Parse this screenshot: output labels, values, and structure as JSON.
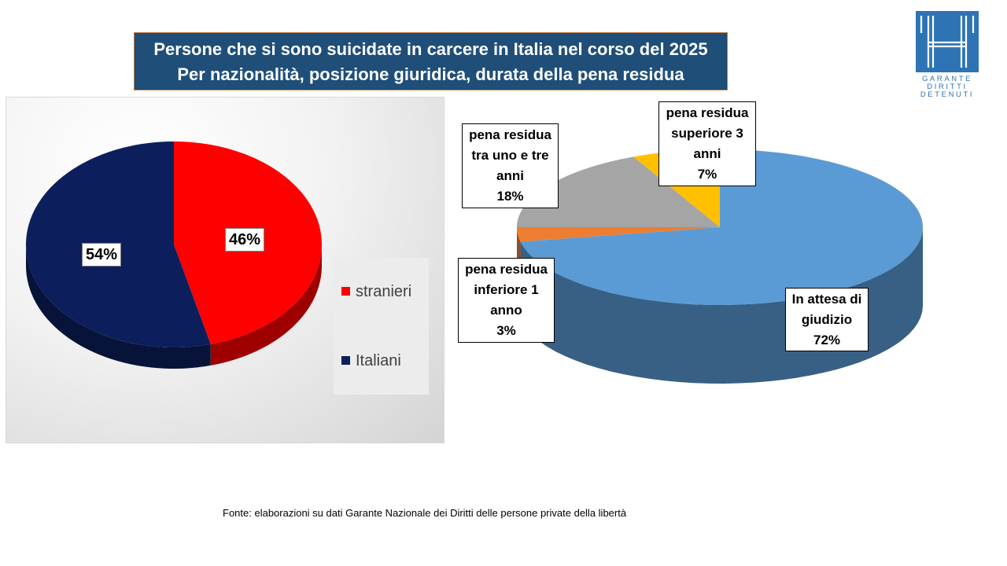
{
  "title": {
    "line1": "Persone che si sono suicidate in carcere in Italia nel corso del 2025",
    "line2": "Per nazionalità, posizione giuridica, durata della pena residua"
  },
  "logo": {
    "line1": "GARANTE",
    "line2": "DIRITTI",
    "line3": "DETENUTI"
  },
  "chart_data": [
    {
      "type": "pie",
      "style": "3d",
      "categories": [
        "stranieri",
        "Italiani"
      ],
      "values": [
        46,
        54
      ],
      "labels": [
        "46%",
        "54%"
      ],
      "colors": [
        "#ff0000",
        "#0c1f5c"
      ],
      "legend_position": "right"
    },
    {
      "type": "pie",
      "style": "3d",
      "categories": [
        "In attesa di giudizio",
        "pena residua inferiore 1 anno",
        "pena residua tra uno e tre anni",
        "pena residua superiore 3 anni"
      ],
      "values": [
        72,
        3,
        18,
        7
      ],
      "label_lines": [
        [
          "In attesa di",
          "giudizio",
          "72%"
        ],
        [
          "pena residua",
          "inferiore 1",
          "anno",
          "3%"
        ],
        [
          "pena residua",
          "tra uno e tre",
          "anni",
          "18%"
        ],
        [
          "pena residua",
          "superiore 3",
          "anni",
          "7%"
        ]
      ],
      "colors": [
        "#5b9bd5",
        "#ed7d31",
        "#a5a5a5",
        "#ffc000"
      ]
    }
  ],
  "source": "Fonte: elaborazioni su dati Garante Nazionale dei Diritti delle persone private della libertà"
}
